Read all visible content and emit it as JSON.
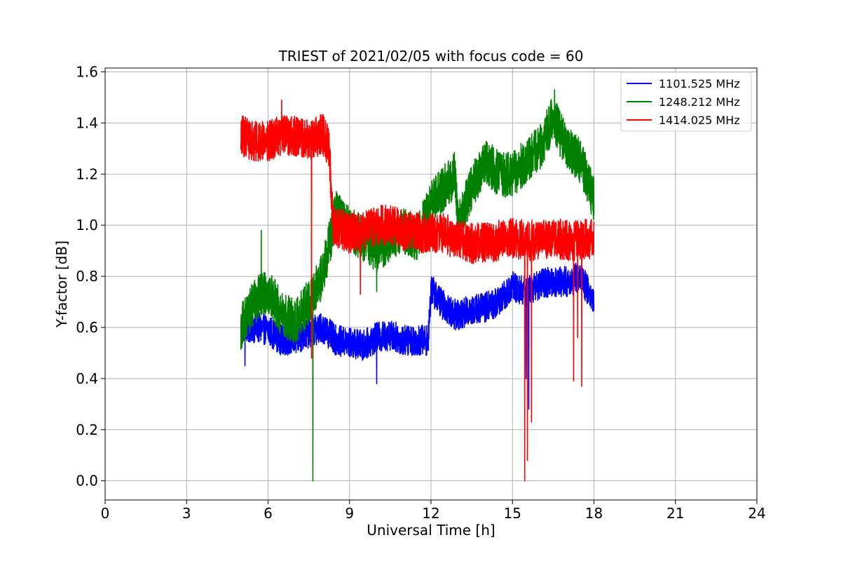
{
  "chart_data": {
    "type": "line",
    "title": "TRIEST of 2021/02/05 with focus code = 60",
    "xlabel": "Universal Time [h]",
    "ylabel": "Y-factor [dB]",
    "xlim": [
      0,
      24
    ],
    "ylim": [
      -0.075,
      1.615
    ],
    "x_ticks": [
      0,
      3,
      6,
      9,
      12,
      15,
      18,
      21,
      24
    ],
    "x_tick_labels": [
      "0",
      "3",
      "6",
      "9",
      "12",
      "15",
      "18",
      "21",
      "24"
    ],
    "y_ticks": [
      0.0,
      0.2,
      0.4,
      0.6,
      0.8,
      1.0,
      1.2,
      1.4,
      1.6
    ],
    "y_tick_labels": [
      "0.0",
      "0.2",
      "0.4",
      "0.6",
      "0.8",
      "1.0",
      "1.2",
      "1.4",
      "1.6"
    ],
    "grid": true,
    "legend_position": "top-right",
    "series": [
      {
        "name": "1101.525 MHz",
        "color": "#0000ff",
        "trend": [
          [
            5.0,
            0.6
          ],
          [
            5.5,
            0.6
          ],
          [
            6.0,
            0.59
          ],
          [
            6.5,
            0.55
          ],
          [
            7.0,
            0.55
          ],
          [
            7.5,
            0.58
          ],
          [
            8.0,
            0.6
          ],
          [
            8.5,
            0.55
          ],
          [
            9.0,
            0.54
          ],
          [
            9.5,
            0.53
          ],
          [
            10.0,
            0.56
          ],
          [
            10.5,
            0.57
          ],
          [
            11.0,
            0.55
          ],
          [
            11.5,
            0.55
          ],
          [
            11.9,
            0.55
          ],
          [
            12.0,
            0.75
          ],
          [
            12.5,
            0.68
          ],
          [
            12.9,
            0.65
          ],
          [
            13.0,
            0.65
          ],
          [
            13.5,
            0.67
          ],
          [
            14.0,
            0.68
          ],
          [
            14.5,
            0.7
          ],
          [
            15.0,
            0.76
          ],
          [
            15.5,
            0.74
          ],
          [
            16.0,
            0.77
          ],
          [
            16.5,
            0.78
          ],
          [
            17.0,
            0.78
          ],
          [
            17.5,
            0.8
          ],
          [
            18.0,
            0.7
          ]
        ],
        "spikes": [
          [
            5.15,
            0.45
          ],
          [
            10.0,
            0.38
          ],
          [
            15.5,
            0.4
          ],
          [
            15.6,
            0.28
          ]
        ]
      },
      {
        "name": "1248.212 MHz",
        "color": "#008000",
        "trend": [
          [
            5.0,
            0.6
          ],
          [
            5.5,
            0.7
          ],
          [
            6.0,
            0.75
          ],
          [
            6.5,
            0.65
          ],
          [
            7.0,
            0.62
          ],
          [
            7.5,
            0.7
          ],
          [
            8.0,
            0.8
          ],
          [
            8.5,
            1.05
          ],
          [
            9.0,
            0.98
          ],
          [
            9.5,
            0.95
          ],
          [
            10.0,
            0.9
          ],
          [
            10.5,
            0.95
          ],
          [
            11.0,
            0.98
          ],
          [
            11.5,
            0.95
          ],
          [
            12.0,
            1.08
          ],
          [
            12.5,
            1.15
          ],
          [
            12.9,
            1.2
          ],
          [
            13.0,
            1.0
          ],
          [
            13.5,
            1.15
          ],
          [
            14.0,
            1.25
          ],
          [
            14.5,
            1.2
          ],
          [
            15.0,
            1.2
          ],
          [
            15.5,
            1.25
          ],
          [
            16.0,
            1.3
          ],
          [
            16.5,
            1.42
          ],
          [
            17.0,
            1.3
          ],
          [
            17.5,
            1.25
          ],
          [
            18.0,
            1.1
          ]
        ],
        "spikes": [
          [
            7.65,
            0.0
          ],
          [
            5.75,
            0.98
          ],
          [
            16.55,
            1.53
          ],
          [
            10.0,
            0.74
          ]
        ]
      },
      {
        "name": "1414.025 MHz",
        "color": "#ff0000",
        "trend": [
          [
            5.0,
            1.35
          ],
          [
            5.5,
            1.33
          ],
          [
            6.0,
            1.33
          ],
          [
            6.5,
            1.35
          ],
          [
            7.0,
            1.35
          ],
          [
            7.5,
            1.33
          ],
          [
            8.0,
            1.36
          ],
          [
            8.25,
            1.3
          ],
          [
            8.4,
            1.0
          ],
          [
            9.0,
            0.97
          ],
          [
            9.5,
            0.97
          ],
          [
            10.0,
            1.0
          ],
          [
            10.5,
            1.0
          ],
          [
            11.0,
            0.98
          ],
          [
            11.5,
            0.97
          ],
          [
            12.0,
            0.97
          ],
          [
            12.5,
            0.97
          ],
          [
            12.8,
            0.95
          ],
          [
            13.0,
            0.95
          ],
          [
            13.5,
            0.93
          ],
          [
            14.0,
            0.93
          ],
          [
            14.5,
            0.94
          ],
          [
            15.0,
            0.95
          ],
          [
            15.5,
            0.94
          ],
          [
            16.0,
            0.94
          ],
          [
            16.5,
            0.95
          ],
          [
            17.0,
            0.94
          ],
          [
            17.5,
            0.94
          ],
          [
            18.0,
            0.95
          ]
        ],
        "spikes": [
          [
            7.6,
            0.48
          ],
          [
            9.4,
            0.73
          ],
          [
            15.45,
            0.0
          ],
          [
            15.55,
            0.08
          ],
          [
            15.7,
            0.23
          ],
          [
            17.25,
            0.39
          ],
          [
            17.55,
            0.37
          ],
          [
            17.4,
            0.56
          ],
          [
            6.5,
            1.49
          ]
        ]
      }
    ]
  }
}
